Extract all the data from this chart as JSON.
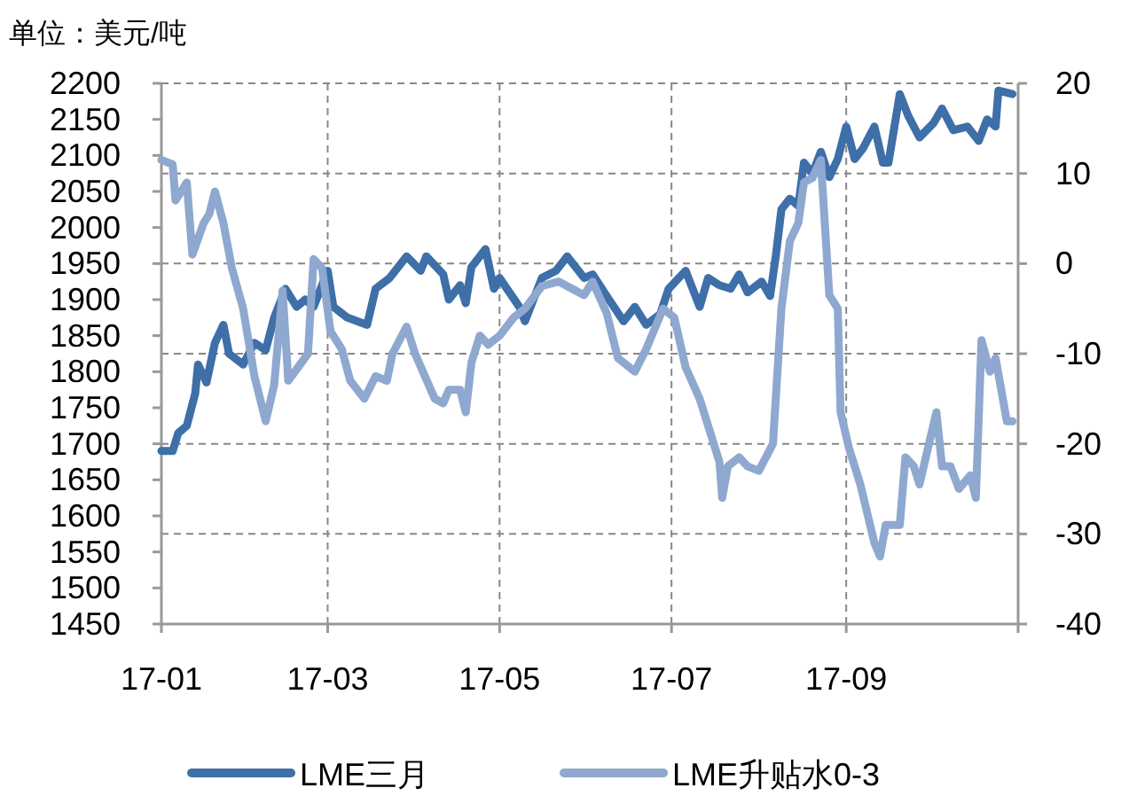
{
  "chart_data": {
    "type": "line",
    "ylabel": "单位：美元/吨",
    "xlim": [
      "--01-01",
      "--11-01"
    ],
    "xticks": [
      {
        "value": "--01-01",
        "label": "17-01"
      },
      {
        "value": "--03-01",
        "label": "17-03"
      },
      {
        "value": "--05-01",
        "label": "17-05"
      },
      {
        "value": "--07-01",
        "label": "17-07"
      },
      {
        "value": "--09-01",
        "label": "17-09"
      },
      {
        "value": "--11-01",
        "label": null
      }
    ],
    "ylim": [
      1450,
      2200
    ],
    "yticks": [
      1450,
      1500,
      1550,
      1600,
      1650,
      1700,
      1750,
      1800,
      1850,
      1900,
      1950,
      2000,
      2050,
      2100,
      2150,
      2200
    ],
    "y2lim": [
      -40,
      20
    ],
    "y2ticks": [
      -40,
      -30,
      -20,
      -10,
      0,
      10,
      20
    ],
    "grid": true,
    "legend": "bottom",
    "line_style": "solid",
    "marker": "none",
    "series": [
      {
        "name": "LME三月",
        "color": "#3e6fa8",
        "x": [
          "--01-01",
          "--01-05",
          "--01-07",
          "--01-10",
          "--01-13",
          "--01-14",
          "--01-17",
          "--01-20",
          "--01-23",
          "--01-25",
          "--01-30",
          "--02-03",
          "--02-07",
          "--02-10",
          "--02-14",
          "--02-18",
          "--02-21",
          "--02-24",
          "--03-01",
          "--03-03",
          "--03-08",
          "--03-15",
          "--03-18",
          "--03-23",
          "--03-29",
          "--04-03",
          "--04-05",
          "--04-11",
          "--04-13",
          "--04-17",
          "--04-19",
          "--04-21",
          "--04-26",
          "--04-29",
          "--05-01",
          "--05-08",
          "--05-10",
          "--05-16",
          "--05-21",
          "--05-25",
          "--05-31",
          "--06-03",
          "--06-08",
          "--06-14",
          "--06-18",
          "--06-22",
          "--06-27",
          "--06-30",
          "--07-06",
          "--07-11",
          "--07-14",
          "--07-18",
          "--07-22",
          "--07-25",
          "--07-28",
          "--08-02",
          "--08-05",
          "--08-07",
          "--08-09",
          "--08-12",
          "--08-15",
          "--08-17",
          "--08-20",
          "--08-23",
          "--08-26",
          "--08-29",
          "--09-01",
          "--09-04",
          "--09-07",
          "--09-11",
          "--09-14",
          "--09-16",
          "--09-20",
          "--09-23",
          "--09-27",
          "--10-02",
          "--10-05",
          "--10-09",
          "--10-14",
          "--10-18",
          "--10-21",
          "--10-24",
          "--10-25",
          "--10-30"
        ],
        "values": [
          1690,
          1690,
          1715,
          1725,
          1770,
          1810,
          1785,
          1840,
          1865,
          1825,
          1810,
          1840,
          1830,
          1875,
          1915,
          1890,
          1900,
          1890,
          1940,
          1890,
          1875,
          1865,
          1915,
          1930,
          1960,
          1940,
          1960,
          1935,
          1900,
          1920,
          1895,
          1945,
          1970,
          1915,
          1930,
          1890,
          1870,
          1930,
          1940,
          1960,
          1930,
          1935,
          1905,
          1870,
          1890,
          1865,
          1880,
          1915,
          1940,
          1890,
          1930,
          1920,
          1915,
          1935,
          1910,
          1925,
          1905,
          1960,
          2025,
          2040,
          2030,
          2090,
          2075,
          2105,
          2070,
          2095,
          2140,
          2095,
          2110,
          2140,
          2090,
          2090,
          2185,
          2155,
          2125,
          2145,
          2165,
          2135,
          2140,
          2120,
          2150,
          2140,
          2190,
          2185
        ]
      },
      {
        "name": "LME升贴水0-3",
        "color": "#8fa8cf",
        "axis": "y2",
        "x": [
          "--01-01",
          "--01-05",
          "--01-06",
          "--01-10",
          "--01-12",
          "--01-16",
          "--01-18",
          "--01-20",
          "--01-23",
          "--01-26",
          "--01-30",
          "--02-03",
          "--02-07",
          "--02-10",
          "--02-13",
          "--02-15",
          "--02-22",
          "--02-24",
          "--02-27",
          "--03-02",
          "--03-06",
          "--03-09",
          "--03-14",
          "--03-18",
          "--03-22",
          "--03-24",
          "--03-29",
          "--04-01",
          "--04-08",
          "--04-11",
          "--04-13",
          "--04-17",
          "--04-19",
          "--04-21",
          "--04-24",
          "--04-27",
          "--05-01",
          "--05-06",
          "--05-10",
          "--05-16",
          "--05-22",
          "--05-31",
          "--06-03",
          "--06-08",
          "--06-12",
          "--06-18",
          "--06-22",
          "--06-28",
          "--07-02",
          "--07-06",
          "--07-11",
          "--07-13",
          "--07-18",
          "--07-19",
          "--07-21",
          "--07-25",
          "--07-28",
          "--08-01",
          "--08-06",
          "--08-09",
          "--08-12",
          "--08-15",
          "--08-17",
          "--08-20",
          "--08-23",
          "--08-26",
          "--08-29",
          "--08-30",
          "--09-02",
          "--09-06",
          "--09-11",
          "--09-13",
          "--09-15",
          "--09-20",
          "--09-22",
          "--09-25",
          "--09-27",
          "--10-03",
          "--10-05",
          "--10-08",
          "--10-11",
          "--10-15",
          "--10-17",
          "--10-19",
          "--10-22",
          "--10-24",
          "--10-26",
          "--10-28",
          "--10-30"
        ],
        "values": [
          11.5,
          11,
          7,
          9,
          1,
          4.5,
          5.5,
          8,
          4.5,
          -0.5,
          -5,
          -12.5,
          -17.5,
          -13.5,
          -3,
          -13,
          -10,
          0.5,
          -0.5,
          -7.5,
          -9.5,
          -13,
          -15,
          -12.5,
          -13,
          -10,
          -7,
          -10,
          -15,
          -15.5,
          -14,
          -14,
          -16.5,
          -11,
          -8,
          -9,
          -8,
          -6,
          -5,
          -2.5,
          -2,
          -3.5,
          -2,
          -5.5,
          -10.5,
          -12,
          -9.5,
          -5,
          -6,
          -11.5,
          -15,
          -17,
          -22,
          -26,
          -22.5,
          -21.5,
          -22.5,
          -23,
          -20,
          -5,
          2.5,
          4.5,
          9,
          9.5,
          11.5,
          -3.5,
          -5,
          -16.5,
          -20.5,
          -24.5,
          -31,
          -32.5,
          -29,
          -29,
          -21.5,
          -22.5,
          -24.5,
          -16.5,
          -22.5,
          -22.5,
          -25,
          -23.5,
          -26,
          -8.5,
          -12,
          -10.5,
          -14,
          -17.5,
          -17.5
        ]
      }
    ]
  }
}
